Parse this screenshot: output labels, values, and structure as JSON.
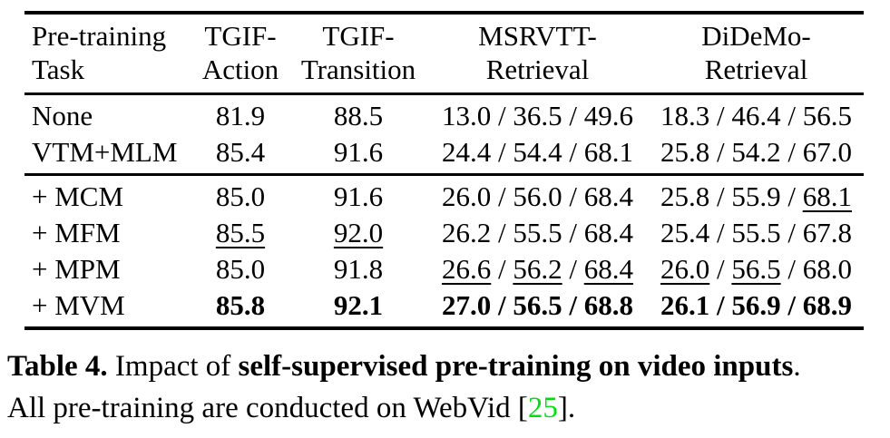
{
  "colors": {
    "text": "#000000",
    "background": "#ffffff",
    "citation_green": "#00e010"
  },
  "table": {
    "columns": [
      {
        "label_line1": "Pre-training",
        "label_line2": "Task",
        "align": "left"
      },
      {
        "label_line1": "TGIF-",
        "label_line2": "Action",
        "align": "center"
      },
      {
        "label_line1": "TGIF-",
        "label_line2": "Transition",
        "align": "center"
      },
      {
        "label_line1": "MSRVTT-",
        "label_line2": "Retrieval",
        "align": "center"
      },
      {
        "label_line1": "DiDeMo-",
        "label_line2": "Retrieval",
        "align": "center"
      }
    ],
    "groups": [
      {
        "rows": [
          {
            "cells": [
              [
                {
                  "t": "None"
                }
              ],
              [
                {
                  "t": "81.9"
                }
              ],
              [
                {
                  "t": "88.5"
                }
              ],
              [
                {
                  "t": "13.0 / 36.5 / 49.6"
                }
              ],
              [
                {
                  "t": "18.3 / 46.4 / 56.5"
                }
              ]
            ]
          },
          {
            "cells": [
              [
                {
                  "t": "VTM+MLM"
                }
              ],
              [
                {
                  "t": "85.4"
                }
              ],
              [
                {
                  "t": "91.6"
                }
              ],
              [
                {
                  "t": "24.4 / 54.4 / 68.1"
                }
              ],
              [
                {
                  "t": "25.8 / 54.2 / 67.0"
                }
              ]
            ]
          }
        ]
      },
      {
        "rows": [
          {
            "cells": [
              [
                {
                  "t": "+ MCM"
                }
              ],
              [
                {
                  "t": "85.0"
                }
              ],
              [
                {
                  "t": "91.6"
                }
              ],
              [
                {
                  "t": "26.0 / 56.0 / 68.4"
                }
              ],
              [
                {
                  "t": "25.8 / 55.9 / "
                },
                {
                  "t": "68.1",
                  "u": true
                }
              ]
            ]
          },
          {
            "cells": [
              [
                {
                  "t": "+ MFM"
                }
              ],
              [
                {
                  "t": "85.5",
                  "u": true
                }
              ],
              [
                {
                  "t": "92.0",
                  "u": true
                }
              ],
              [
                {
                  "t": "26.2 / 55.5 / 68.4"
                }
              ],
              [
                {
                  "t": "25.4 / 55.5 / 67.8"
                }
              ]
            ]
          },
          {
            "cells": [
              [
                {
                  "t": "+ MPM"
                }
              ],
              [
                {
                  "t": "85.0"
                }
              ],
              [
                {
                  "t": "91.8"
                }
              ],
              [
                {
                  "t": "26.6",
                  "u": true
                },
                {
                  "t": " / "
                },
                {
                  "t": "56.2",
                  "u": true
                },
                {
                  "t": " / "
                },
                {
                  "t": "68.4",
                  "u": true
                }
              ],
              [
                {
                  "t": "26.0",
                  "u": true
                },
                {
                  "t": " / "
                },
                {
                  "t": "56.5",
                  "u": true
                },
                {
                  "t": " / 68.0"
                }
              ]
            ]
          },
          {
            "cells": [
              [
                {
                  "t": "+ MVM"
                }
              ],
              [
                {
                  "t": "85.8",
                  "b": true
                }
              ],
              [
                {
                  "t": "92.1",
                  "b": true
                }
              ],
              [
                {
                  "t": "27.0 / 56.5 / 68.8",
                  "b": true
                }
              ],
              [
                {
                  "t": "26.1 / 56.9 / 68.9",
                  "b": true
                }
              ]
            ]
          }
        ]
      }
    ]
  },
  "caption": {
    "segments": [
      {
        "t": "Table 4.",
        "b": true
      },
      {
        "t": " Impact of "
      },
      {
        "t": "self-supervised pre-training on video inputs",
        "b": true
      },
      {
        "t": "."
      },
      {
        "br": true
      },
      {
        "t": "All pre-training are conducted on WebVid ["
      },
      {
        "t": "25",
        "green": true
      },
      {
        "t": "]."
      }
    ]
  }
}
